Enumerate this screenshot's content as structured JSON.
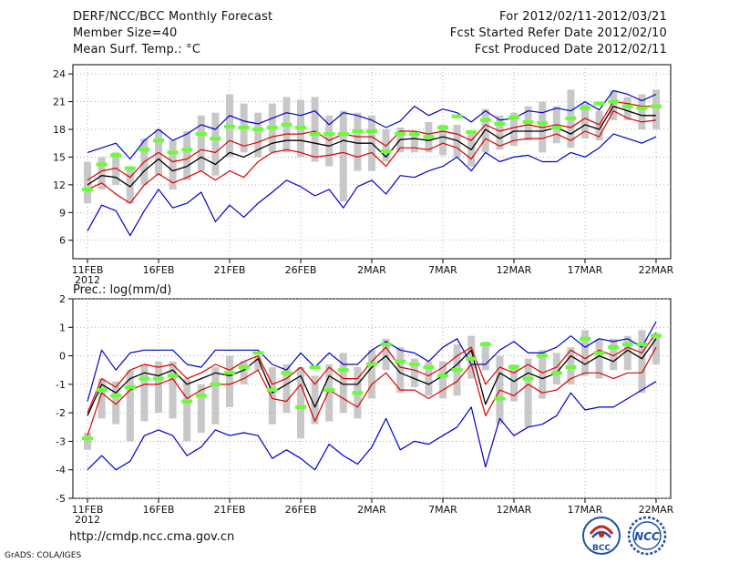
{
  "header": {
    "title": "DERF/NCC/BCC Monthly Forecast",
    "member_size": "Member Size=40",
    "variable": "Mean Surf. Temp.: °C",
    "period": "For 2012/02/11-2012/03/21",
    "started": "Fcst Started Refer Date 2012/02/10",
    "produced": "Fcst Produced Date 2012/02/11"
  },
  "footer": {
    "url": "http://cmdp.ncc.cma.gov.cn",
    "credit": "GrADS: COLA/IGES",
    "logo_left_text": "BCC",
    "logo_right_text": "NCC"
  },
  "colors": {
    "obs_box": "#c8c8c8",
    "obs_mark": "#66ff33",
    "envelope": "#0000cc",
    "ens_mean": "#000000",
    "spread": "#dd0000",
    "frame": "#000000"
  },
  "chart_data": [
    {
      "type": "line",
      "title": "Mean Surf. Temp.: °C",
      "x_tick_labels": [
        "11FEB",
        "16FEB",
        "21FEB",
        "26FEB",
        "2MAR",
        "7MAR",
        "12MAR",
        "17MAR",
        "22MAR"
      ],
      "x_year_label": "2012",
      "xlim": [
        0,
        40
      ],
      "ylim": [
        4,
        25
      ],
      "y_ticks": [
        6,
        9,
        12,
        15,
        18,
        21,
        24
      ],
      "series": [
        {
          "name": "max",
          "values": [
            15.5,
            16.0,
            16.5,
            14.8,
            16.8,
            18.0,
            16.8,
            17.5,
            18.5,
            18.0,
            19.5,
            18.9,
            18.6,
            19.2,
            19.8,
            19.5,
            20.0,
            18.5,
            19.8,
            19.5,
            19.0,
            18.2,
            18.9,
            20.5,
            19.5,
            20.2,
            19.8,
            18.8,
            20.0,
            19.0,
            19.2,
            20.0,
            19.8,
            20.3,
            20.0,
            21.0,
            20.1,
            22.2,
            21.8,
            21.1,
            21.8
          ]
        },
        {
          "name": "upper",
          "values": [
            12.5,
            13.5,
            13.8,
            12.8,
            14.5,
            15.5,
            14.5,
            14.8,
            15.8,
            15.5,
            16.8,
            16.2,
            16.6,
            17.2,
            17.5,
            17.5,
            17.8,
            16.8,
            17.5,
            17.2,
            17.2,
            16.2,
            17.8,
            17.8,
            17.5,
            17.8,
            17.5,
            16.8,
            18.5,
            17.8,
            18.2,
            18.5,
            18.2,
            18.5,
            18.2,
            19.2,
            18.5,
            21.0,
            20.8,
            20.5,
            20.5
          ]
        },
        {
          "name": "mean",
          "values": [
            12.0,
            13.0,
            12.8,
            11.8,
            13.5,
            14.8,
            13.5,
            14.0,
            15.0,
            14.2,
            15.5,
            15.0,
            15.8,
            16.5,
            16.8,
            16.8,
            16.5,
            16.2,
            16.8,
            16.5,
            16.5,
            15.0,
            16.9,
            17.0,
            16.8,
            17.2,
            16.8,
            15.8,
            18.0,
            17.0,
            17.8,
            17.8,
            17.8,
            18.2,
            17.5,
            18.5,
            18.0,
            20.5,
            20.0,
            19.5,
            19.5
          ]
        },
        {
          "name": "lower",
          "values": [
            11.5,
            12.2,
            11.0,
            10.0,
            12.0,
            13.2,
            12.2,
            12.8,
            13.5,
            12.5,
            13.5,
            12.8,
            14.5,
            15.5,
            15.8,
            15.5,
            15.0,
            15.2,
            15.5,
            15.0,
            15.5,
            14.0,
            16.0,
            16.0,
            15.8,
            16.5,
            16.0,
            14.8,
            17.0,
            16.2,
            16.8,
            17.0,
            17.0,
            17.5,
            16.8,
            17.8,
            17.2,
            20.0,
            19.2,
            18.8,
            19.0
          ]
        },
        {
          "name": "min",
          "values": [
            7.0,
            9.8,
            9.2,
            6.5,
            9.2,
            11.5,
            9.5,
            10.0,
            11.2,
            8.0,
            9.8,
            8.5,
            10.0,
            11.2,
            12.5,
            11.8,
            10.8,
            11.5,
            9.5,
            11.8,
            12.5,
            11.0,
            13.0,
            12.8,
            13.5,
            14.0,
            15.0,
            13.5,
            15.5,
            14.5,
            15.0,
            15.2,
            14.5,
            14.5,
            15.5,
            15.0,
            16.0,
            17.5,
            17.0,
            16.5,
            17.2
          ]
        }
      ],
      "observed_box_top": [
        14.5,
        15.0,
        15.5,
        13.8,
        17.0,
        18.0,
        16.8,
        17.8,
        19.5,
        19.8,
        21.8,
        20.8,
        19.8,
        20.8,
        21.5,
        21.2,
        21.5,
        19.5,
        20.0,
        19.8,
        19.5,
        18.0,
        18.2,
        17.8,
        18.8,
        18.5,
        18.5,
        17.5,
        20.2,
        19.5,
        19.8,
        20.5,
        21.0,
        20.5,
        22.3,
        20.8,
        20.0,
        22.2,
        21.5,
        21.8,
        22.3
      ],
      "observed_box_bottom": [
        10.0,
        11.5,
        12.0,
        10.0,
        12.0,
        13.0,
        11.5,
        12.5,
        13.5,
        13.0,
        15.0,
        15.5,
        15.0,
        15.5,
        15.5,
        15.0,
        14.5,
        14.0,
        10.2,
        13.5,
        13.5,
        14.5,
        15.5,
        15.5,
        15.5,
        15.2,
        15.0,
        14.0,
        15.5,
        15.8,
        16.2,
        16.8,
        15.5,
        16.5,
        16.0,
        17.0,
        16.8,
        19.0,
        19.0,
        18.0,
        18.0
      ],
      "observed": [
        11.5,
        14.2,
        15.2,
        13.8,
        15.8,
        16.8,
        15.5,
        15.8,
        17.5,
        17.0,
        18.3,
        18.2,
        18.0,
        18.2,
        18.5,
        18.2,
        17.5,
        17.5,
        17.5,
        17.8,
        17.8,
        15.6,
        17.5,
        17.5,
        17.2,
        18.2,
        19.4,
        17.7,
        19.0,
        18.6,
        19.3,
        18.8,
        18.7,
        18.2,
        19.2,
        20.3,
        20.8,
        21.0,
        20.5,
        20.3,
        20.5
      ]
    },
    {
      "type": "line",
      "title": "Prec.: log(mm/d)",
      "x_tick_labels": [
        "11FEB",
        "16FEB",
        "21FEB",
        "26FEB",
        "2MAR",
        "7MAR",
        "12MAR",
        "17MAR",
        "22MAR"
      ],
      "x_year_label": "2012",
      "xlim": [
        0,
        40
      ],
      "ylim": [
        -5,
        2
      ],
      "y_ticks": [
        -5,
        -4,
        -3,
        -2,
        -1,
        0,
        1,
        2
      ],
      "series": [
        {
          "name": "max",
          "values": [
            -1.6,
            0.2,
            -0.5,
            0.1,
            0.2,
            0.2,
            0.2,
            -0.3,
            -0.4,
            0.2,
            0.2,
            0.2,
            0.2,
            -0.3,
            -0.5,
            0.1,
            -0.4,
            0.1,
            -0.3,
            -0.3,
            0.2,
            0.5,
            0.2,
            0.1,
            -0.2,
            0.3,
            0.6,
            -0.3,
            -0.3,
            0.2,
            0.5,
            0.1,
            0.1,
            0.3,
            0.7,
            0.3,
            0.6,
            0.5,
            0.6,
            0.3,
            1.2
          ]
        },
        {
          "name": "upper",
          "values": [
            -2.0,
            -0.8,
            -1.1,
            -0.5,
            -0.3,
            -0.4,
            -0.3,
            -0.8,
            -0.6,
            -0.3,
            -0.5,
            -0.2,
            0.0,
            -1.0,
            -0.8,
            -0.4,
            -1.0,
            -0.4,
            -0.8,
            -0.8,
            -0.2,
            0.3,
            -0.4,
            -0.5,
            -0.7,
            -0.4,
            0.0,
            0.3,
            -1.0,
            -0.4,
            -0.6,
            -0.3,
            -0.6,
            -0.4,
            0.2,
            -0.1,
            0.2,
            0.0,
            0.3,
            0.1,
            0.8
          ]
        },
        {
          "name": "mean",
          "values": [
            -2.1,
            -1.0,
            -1.3,
            -0.8,
            -0.6,
            -0.7,
            -0.5,
            -1.0,
            -0.8,
            -0.6,
            -0.7,
            -0.5,
            -0.1,
            -1.3,
            -1.0,
            -0.7,
            -1.8,
            -0.7,
            -1.0,
            -1.0,
            -0.4,
            0.0,
            -0.6,
            -0.8,
            -1.0,
            -0.7,
            -0.3,
            0.2,
            -1.7,
            -0.6,
            -0.9,
            -0.6,
            -0.8,
            -0.6,
            0.0,
            -0.3,
            0.0,
            -0.2,
            0.2,
            -0.1,
            0.6
          ]
        },
        {
          "name": "lower",
          "values": [
            -2.8,
            -1.3,
            -1.7,
            -1.2,
            -1.0,
            -1.0,
            -0.8,
            -1.5,
            -1.2,
            -1.0,
            -1.0,
            -0.8,
            -0.5,
            -1.5,
            -1.6,
            -1.0,
            -2.3,
            -1.2,
            -1.5,
            -1.8,
            -1.0,
            -0.6,
            -1.2,
            -1.2,
            -1.5,
            -1.2,
            -0.9,
            -0.3,
            -2.1,
            -1.2,
            -1.4,
            -1.0,
            -1.3,
            -1.2,
            -0.8,
            -0.6,
            -0.6,
            -0.8,
            -0.6,
            -0.6,
            0.3
          ]
        },
        {
          "name": "min",
          "values": [
            -4.0,
            -3.5,
            -4.0,
            -3.7,
            -2.8,
            -2.6,
            -2.8,
            -3.5,
            -3.2,
            -2.6,
            -2.8,
            -2.7,
            -2.8,
            -3.6,
            -3.3,
            -3.6,
            -4.0,
            -3.1,
            -3.5,
            -3.8,
            -3.2,
            -2.2,
            -3.3,
            -3.0,
            -3.1,
            -2.8,
            -2.5,
            -1.8,
            -3.9,
            -2.2,
            -2.8,
            -2.5,
            -2.4,
            -2.1,
            -1.3,
            -1.9,
            -1.8,
            -1.8,
            -1.5,
            -1.2,
            -0.9
          ]
        },
        {
          "name": "observed",
          "values": [
            -2.9,
            -1.2,
            -1.4,
            -1.1,
            -0.8,
            -0.8,
            -0.7,
            -1.6,
            -1.4,
            -1.0,
            -0.6,
            -0.4,
            0.1,
            -1.2,
            -0.6,
            -1.8,
            -0.4,
            -1.2,
            -0.5,
            -1.3,
            -0.3,
            0.4,
            -0.2,
            -0.3,
            -0.4,
            -0.7,
            -0.5,
            -0.1,
            0.4,
            -1.5,
            -0.4,
            -0.8,
            0.0,
            -0.6,
            -0.4,
            0.6,
            0.1,
            0.3,
            0.4,
            0.4,
            0.7
          ]
        }
      ],
      "observed_box_top": [
        -2.7,
        -0.8,
        -0.9,
        -0.5,
        -0.3,
        -0.2,
        -0.2,
        -0.8,
        -1.0,
        -0.4,
        0.0,
        -0.2,
        0.0,
        -0.4,
        -0.3,
        -0.4,
        -0.7,
        -0.3,
        0.1,
        -0.4,
        0.2,
        0.6,
        0.3,
        -0.1,
        -0.2,
        -0.2,
        0.4,
        0.7,
        0.5,
        0.0,
        -0.3,
        -0.1,
        0.2,
        0.1,
        0.3,
        0.9,
        0.6,
        0.6,
        0.7,
        0.9,
        0.8
      ],
      "observed_box_bottom": [
        -3.3,
        -2.2,
        -2.4,
        -3.0,
        -2.3,
        -2.0,
        -2.2,
        -3.0,
        -2.7,
        -2.4,
        -1.8,
        -1.0,
        -0.5,
        -2.4,
        -2.0,
        -2.9,
        -2.4,
        -2.3,
        -2.0,
        -2.2,
        -1.5,
        -0.5,
        -1.3,
        -1.1,
        -1.4,
        -1.5,
        -1.4,
        -0.8,
        -0.5,
        -2.4,
        -1.6,
        -2.5,
        -1.5,
        -1.0,
        -1.0,
        -0.7,
        -0.8,
        -0.5,
        -0.5,
        -1.3,
        -0.3
      ]
    }
  ]
}
